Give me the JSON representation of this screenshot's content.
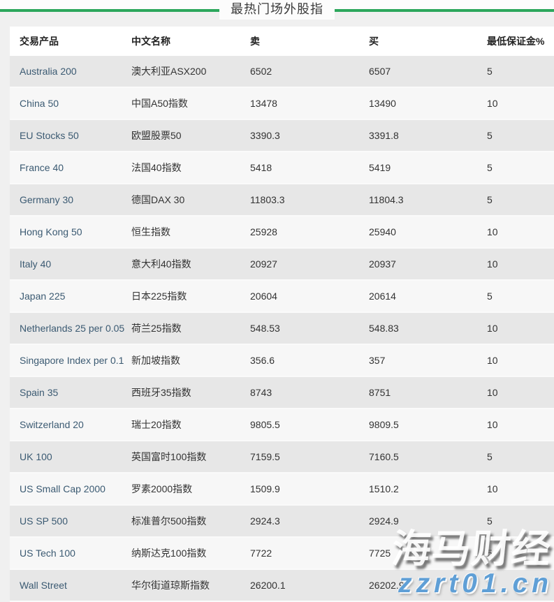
{
  "header": {
    "title": "最热门场外股指"
  },
  "table": {
    "columns": [
      "交易产品",
      "中文名称",
      "卖",
      "买",
      "最低保证金%"
    ],
    "rows": [
      {
        "product": "Australia 200",
        "name_cn": "澳大利亚ASX200",
        "sell": "6502",
        "buy": "6507",
        "margin": "5"
      },
      {
        "product": "China 50",
        "name_cn": "中国A50指数",
        "sell": "13478",
        "buy": "13490",
        "margin": "10"
      },
      {
        "product": "EU Stocks 50",
        "name_cn": "欧盟股票50",
        "sell": "3390.3",
        "buy": "3391.8",
        "margin": "5"
      },
      {
        "product": "France 40",
        "name_cn": "法国40指数",
        "sell": "5418",
        "buy": "5419",
        "margin": "5"
      },
      {
        "product": "Germany 30",
        "name_cn": "德国DAX 30",
        "sell": "11803.3",
        "buy": "11804.3",
        "margin": "5"
      },
      {
        "product": "Hong Kong 50",
        "name_cn": "恒生指数",
        "sell": "25928",
        "buy": "25940",
        "margin": "10"
      },
      {
        "product": "Italy 40",
        "name_cn": "意大利40指数",
        "sell": "20927",
        "buy": "20937",
        "margin": "10"
      },
      {
        "product": "Japan 225",
        "name_cn": "日本225指数",
        "sell": "20604",
        "buy": "20614",
        "margin": "5"
      },
      {
        "product": "Netherlands 25 per 0.05",
        "name_cn": "荷兰25指数",
        "sell": "548.53",
        "buy": "548.83",
        "margin": "10"
      },
      {
        "product": "Singapore Index per 0.1",
        "name_cn": "新加坡指数",
        "sell": "356.6",
        "buy": "357",
        "margin": "10"
      },
      {
        "product": "Spain 35",
        "name_cn": "西班牙35指数",
        "sell": "8743",
        "buy": "8751",
        "margin": "10"
      },
      {
        "product": "Switzerland 20",
        "name_cn": "瑞士20指数",
        "sell": "9805.5",
        "buy": "9809.5",
        "margin": "10"
      },
      {
        "product": "UK 100",
        "name_cn": "英国富时100指数",
        "sell": "7159.5",
        "buy": "7160.5",
        "margin": "5"
      },
      {
        "product": "US Small Cap 2000",
        "name_cn": "罗素2000指数",
        "sell": "1509.9",
        "buy": "1510.2",
        "margin": "10"
      },
      {
        "product": "US SP 500",
        "name_cn": "标准普尔500指数",
        "sell": "2924.3",
        "buy": "2924.9",
        "margin": "5"
      },
      {
        "product": "US Tech 100",
        "name_cn": "纳斯达克100指数",
        "sell": "7722",
        "buy": "7725",
        "margin": "5"
      },
      {
        "product": "Wall Street",
        "name_cn": "华尔街道琼斯指数",
        "sell": "26200.1",
        "buy": "26202.9",
        "margin": "5"
      }
    ]
  },
  "watermark": {
    "line1": "海马财经",
    "line2": "zzrt01.cn"
  },
  "colors": {
    "accent-green": "#2ca75c",
    "product-link": "#3b5a72",
    "watermark-blue": "#5f9fd6",
    "row-alt": "#e7e7e7",
    "row-base": "#f7f7f7"
  }
}
